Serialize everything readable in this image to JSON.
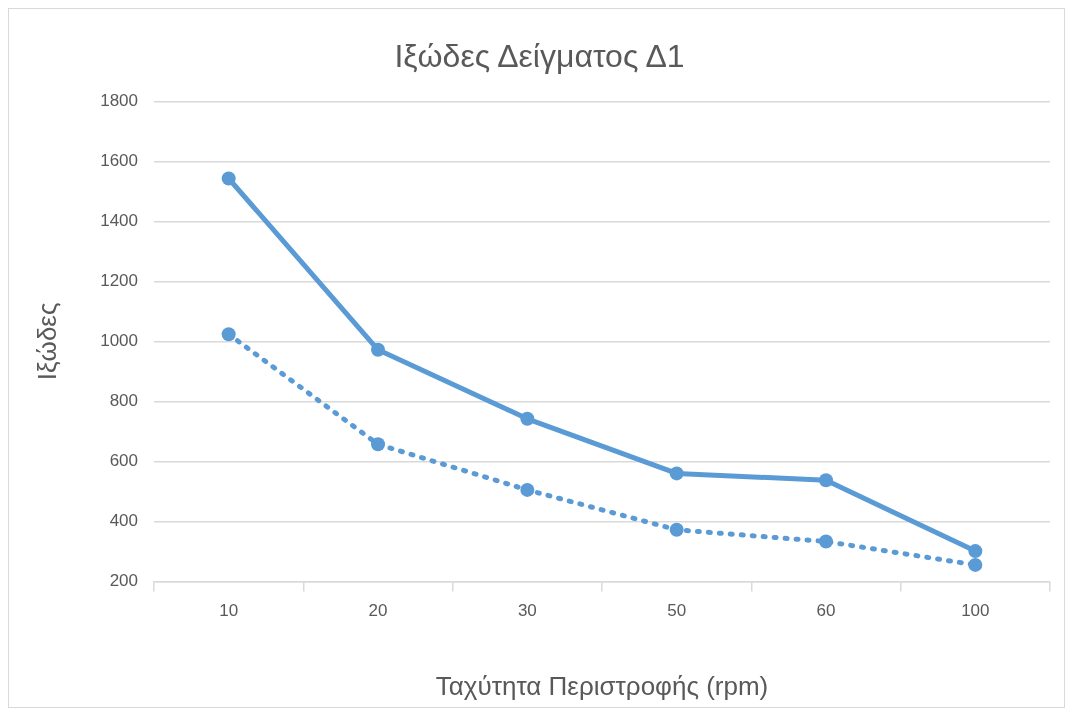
{
  "chart_data": {
    "type": "line",
    "title": "Ιξώδες Δείγματος Δ1",
    "xlabel": "Ταχύτητα Περιστροφής (rpm)",
    "ylabel": "Ιξώδες",
    "categories": [
      "10",
      "20",
      "30",
      "50",
      "60",
      "100"
    ],
    "series": [
      {
        "color": "#5b9bd5",
        "line_style": "solid",
        "values": [
          1543,
          972,
          742,
          560,
          537,
          301
        ]
      },
      {
        "color": "#5b9bd5",
        "line_style": "dotted",
        "values": [
          1024,
          657,
          505,
          372,
          333,
          255
        ]
      }
    ],
    "ylim": [
      200,
      1800
    ],
    "yticks": [
      200,
      400,
      600,
      800,
      1000,
      1200,
      1400,
      1600,
      1800
    ],
    "grid": "y",
    "legend": false,
    "marker": "circle"
  }
}
